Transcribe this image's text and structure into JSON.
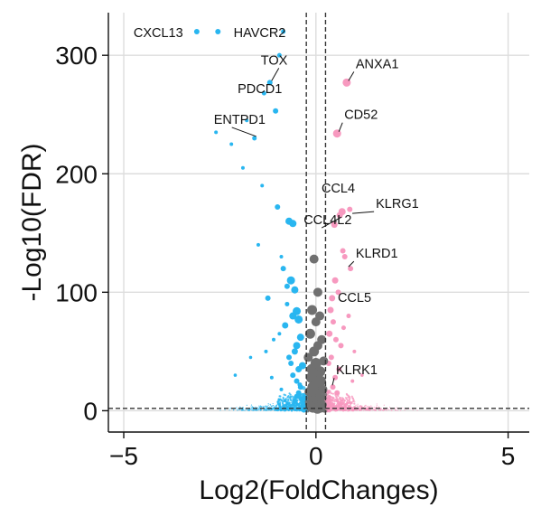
{
  "chart_data": {
    "type": "scatter",
    "xlabel": "Log2(FoldChanges)",
    "ylabel": "-Log10(FDR)",
    "xlim": [
      -5.4,
      5.55
    ],
    "ylim": [
      -18,
      336
    ],
    "xticks": [
      -5,
      0,
      5
    ],
    "xtick_labels": [
      "−5",
      "0",
      "5"
    ],
    "yticks": [
      0,
      100,
      200,
      300
    ],
    "ytick_labels": [
      "0",
      "100",
      "200",
      "300"
    ],
    "grid": true,
    "thresholds": {
      "log2fc": [
        -0.25,
        0.25
      ],
      "neg_log10_fdr": 2
    },
    "colors": {
      "down": "#29b6f0",
      "up": "#f799bf",
      "ns": "#707070",
      "grid": "#dddddd",
      "threshold": "#333333"
    },
    "series": [
      {
        "group": "down",
        "x": [
          -3.1,
          -2.55,
          -1.2,
          -0.85,
          -1.35,
          -1.05,
          -1.6,
          -0.95,
          -0.7,
          -0.6,
          -1.0,
          -1.4,
          -1.9,
          -2.2,
          -2.6,
          -1.8,
          -0.65,
          -0.55,
          -0.85,
          -1.25,
          -1.5,
          -0.9,
          -0.75,
          -0.5,
          -0.45,
          -0.6,
          -0.8,
          -0.4,
          -0.5,
          -0.55,
          -0.7,
          -0.35,
          -0.45,
          -0.6,
          -0.5,
          -0.4,
          -0.75,
          -1.1,
          -0.95,
          -1.3,
          -1.7,
          -2.1,
          -0.65,
          -0.45,
          -0.38,
          -0.5,
          -0.55,
          -0.42,
          -0.9,
          -1.15
        ],
        "y": [
          320,
          320,
          277,
          320,
          268,
          253,
          230,
          300,
          160,
          158,
          172,
          190,
          205,
          225,
          235,
          245,
          110,
          102,
          120,
          95,
          140,
          130,
          105,
          84,
          77,
          80,
          72,
          62,
          55,
          50,
          45,
          38,
          35,
          30,
          25,
          20,
          90,
          60,
          65,
          50,
          45,
          30,
          40,
          15,
          10,
          12,
          8,
          22,
          18,
          28
        ],
        "sizes": [
          3,
          3,
          3,
          2.5,
          2.5,
          3,
          2.5,
          2.5,
          4,
          4,
          3,
          2,
          2,
          2,
          2,
          2,
          4.5,
          4,
          3,
          3,
          2,
          2,
          3,
          4.5,
          4.5,
          4,
          3.5,
          4,
          4,
          3.5,
          3,
          4,
          3.5,
          3,
          3,
          3,
          2.5,
          2,
          2,
          2,
          1.8,
          1.8,
          3,
          3,
          3,
          3,
          3,
          2.5,
          2,
          2
        ]
      },
      {
        "group": "up",
        "x": [
          0.8,
          0.55,
          0.68,
          0.88,
          0.62,
          0.48,
          0.7,
          0.75,
          0.9,
          0.5,
          0.42,
          0.58,
          0.38,
          0.45,
          0.35,
          0.52,
          0.65,
          0.4,
          0.33,
          0.6,
          0.85,
          0.72,
          1.0,
          1.2,
          0.95,
          0.44,
          0.55,
          0.5
        ],
        "y": [
          277,
          234,
          168,
          170,
          165,
          157,
          135,
          130,
          120,
          110,
          95,
          100,
          85,
          75,
          65,
          60,
          55,
          45,
          40,
          35,
          80,
          70,
          50,
          30,
          25,
          20,
          15,
          28
        ],
        "sizes": [
          4.5,
          4.5,
          4,
          3,
          3.5,
          3.5,
          3,
          3,
          3,
          3.5,
          3.5,
          3,
          3.5,
          3,
          3.5,
          3,
          3,
          3,
          3,
          3,
          2.5,
          2.5,
          2,
          1.8,
          2,
          3,
          3,
          3
        ]
      },
      {
        "group": "ns",
        "x": [
          -0.05,
          0.05,
          -0.1,
          0.1,
          0.0,
          -0.15,
          0.15,
          0.05,
          -0.05,
          -0.2,
          0.2,
          0.0,
          -0.1,
          0.1,
          0.0,
          -0.12,
          0.12,
          0.06,
          -0.08,
          0.18,
          -0.18,
          0.02,
          -0.02,
          0.08,
          -0.06,
          -0.12,
          0.12,
          0.0,
          -0.04,
          0.04
        ],
        "y": [
          128,
          100,
          85,
          80,
          75,
          65,
          60,
          55,
          50,
          45,
          42,
          40,
          35,
          33,
          30,
          28,
          25,
          22,
          20,
          18,
          16,
          14,
          12,
          10,
          8,
          6,
          5,
          4,
          3,
          2
        ],
        "sizes": [
          5,
          5,
          5.5,
          5,
          5,
          5.5,
          5,
          5,
          5.5,
          5,
          5,
          6,
          6,
          6,
          6,
          6,
          6,
          6,
          6,
          5,
          5,
          6,
          6,
          6,
          6,
          5,
          5,
          6,
          6,
          6
        ]
      }
    ],
    "annotations": [
      {
        "label": "CXCL13",
        "x": -3.1,
        "y": 320
      },
      {
        "label": "HAVCR2",
        "x": -0.85,
        "y": 320
      },
      {
        "label": "TOX",
        "x": -1.2,
        "y": 277
      },
      {
        "label": "PDCD1",
        "x": -1.05,
        "y": 253
      },
      {
        "label": "ENTPD1",
        "x": -1.6,
        "y": 230
      },
      {
        "label": "ANXA1",
        "x": 0.8,
        "y": 277
      },
      {
        "label": "CD52",
        "x": 0.55,
        "y": 234
      },
      {
        "label": "CCL4",
        "x": 0.85,
        "y": 172
      },
      {
        "label": "KLRG1",
        "x": 0.9,
        "y": 165
      },
      {
        "label": "CCL4L2",
        "x": 0.62,
        "y": 162
      },
      {
        "label": "KLRD1",
        "x": 0.8,
        "y": 120
      },
      {
        "label": "CCL5",
        "x": 0.45,
        "y": 78
      },
      {
        "label": "KLRK1",
        "x": 0.38,
        "y": 20
      }
    ]
  }
}
